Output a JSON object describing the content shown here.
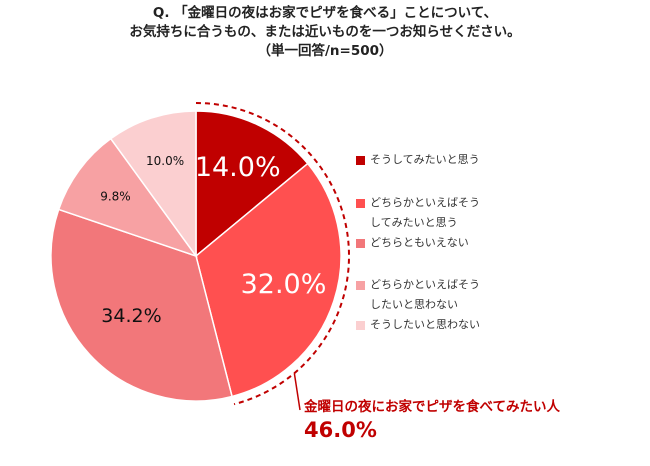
{
  "title": {
    "line1": "Q. 「金曜日の夜はお家でピザを食べる」ことについて、",
    "line2": "お気持ちに合うもの、または近いものを一つお知らせください。",
    "line3": "（単一回答/n=500）"
  },
  "chart_data": {
    "type": "pie",
    "start": "12 o'clock",
    "direction": "clockwise",
    "slices": [
      {
        "label": "そうしてみたいと思う",
        "value": 14.0,
        "value_label": "14.0%",
        "color": "#c00000",
        "label_color": "#ffffff"
      },
      {
        "label": "どちらかといえばそうしてみたいと思う",
        "value": 32.0,
        "value_label": "32.0%",
        "color": "#ff5050",
        "label_color": "#ffffff"
      },
      {
        "label": "どちらともいえない",
        "value": 34.2,
        "value_label": "34.2%",
        "color": "#f2777a",
        "label_color": "#111111"
      },
      {
        "label": "どちらかといえばそうしたいと思わない",
        "value": 9.8,
        "value_label": "9.8%",
        "color": "#f7a1a3",
        "label_color": "#111111"
      },
      {
        "label": "そうしたいと思わない",
        "value": 10.0,
        "value_label": "10.0%",
        "color": "#fbcfd0",
        "label_color": "#111111"
      }
    ]
  },
  "legend": {
    "items": [
      {
        "lines": [
          "そうしてみたいと思う"
        ],
        "color": "#c00000"
      },
      {
        "lines": [
          "どちらかといえばそう",
          "してみたいと思う"
        ],
        "color": "#ff5050"
      },
      {
        "lines": [
          "どちらともいえない"
        ],
        "color": "#f2777a"
      },
      {
        "lines": [
          "どちらかといえばそう",
          "したいと思わない"
        ],
        "color": "#f7a1a3"
      },
      {
        "lines": [
          "そうしたいと思わない"
        ],
        "color": "#fbcfd0"
      }
    ]
  },
  "callout": {
    "label": "金曜日の夜にお家でピザを食べてみたい人",
    "value": "46.0%",
    "color": "#c00000"
  }
}
